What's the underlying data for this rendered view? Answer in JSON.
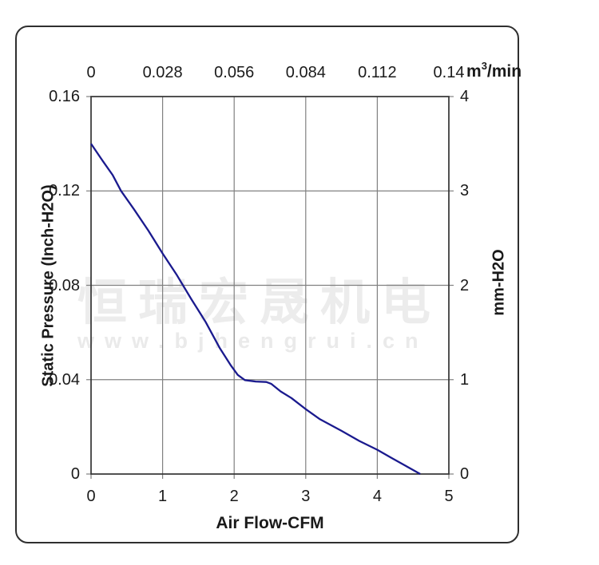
{
  "watermark": {
    "cn_text": "恒瑞宏晟机电",
    "url_text": "www.bjhengrui.cn",
    "cn_color": "#ececec",
    "url_color": "#eaeaea"
  },
  "chart_data": {
    "type": "line",
    "x_bottom_axis": {
      "label": "Air Flow-CFM",
      "ticks": [
        "0",
        "1",
        "2",
        "3",
        "4",
        "5"
      ],
      "range": [
        0,
        5
      ]
    },
    "x_top_axis": {
      "unit_prefix": "m",
      "unit_sup": "3",
      "unit_suffix": "/min",
      "ticks": [
        "0",
        "0.028",
        "0.056",
        "0.084",
        "0.112",
        "0.14"
      ],
      "range": [
        0,
        0.14
      ]
    },
    "y_left_axis": {
      "label": "Static Pressure (Inch-H2O)",
      "ticks": [
        "0.16",
        "0.12",
        "0.08",
        "0.04",
        "0"
      ],
      "range": [
        0,
        0.16
      ]
    },
    "y_right_axis": {
      "label": "mm-H2O",
      "ticks": [
        "4",
        "3",
        "2",
        "1",
        "0"
      ],
      "range": [
        0,
        4
      ]
    },
    "grid": true,
    "legend": "none",
    "series": [
      {
        "name": "static-pressure-vs-airflow",
        "color": "#1a1a8e",
        "points_cfm_inchH2O": [
          [
            0.0,
            0.14
          ],
          [
            0.15,
            0.1333
          ],
          [
            0.3,
            0.1268
          ],
          [
            0.42,
            0.12
          ],
          [
            0.6,
            0.1122
          ],
          [
            0.8,
            0.1032
          ],
          [
            1.0,
            0.0935
          ],
          [
            1.2,
            0.0843
          ],
          [
            1.4,
            0.0742
          ],
          [
            1.6,
            0.0645
          ],
          [
            1.8,
            0.0533
          ],
          [
            1.95,
            0.0462
          ],
          [
            2.05,
            0.042
          ],
          [
            2.15,
            0.0398
          ],
          [
            2.3,
            0.0392
          ],
          [
            2.45,
            0.039
          ],
          [
            2.52,
            0.0382
          ],
          [
            2.65,
            0.035
          ],
          [
            2.8,
            0.0322
          ],
          [
            3.0,
            0.0275
          ],
          [
            3.2,
            0.0232
          ],
          [
            3.5,
            0.0183
          ],
          [
            3.75,
            0.014
          ],
          [
            4.0,
            0.0103
          ],
          [
            4.2,
            0.0068
          ],
          [
            4.4,
            0.0034
          ],
          [
            4.6,
            0.0
          ]
        ]
      }
    ],
    "colors": {
      "grid": "#808080",
      "plot_border": "#333333",
      "curve": "#1a1a8e",
      "text": "#1a1a1a"
    }
  }
}
